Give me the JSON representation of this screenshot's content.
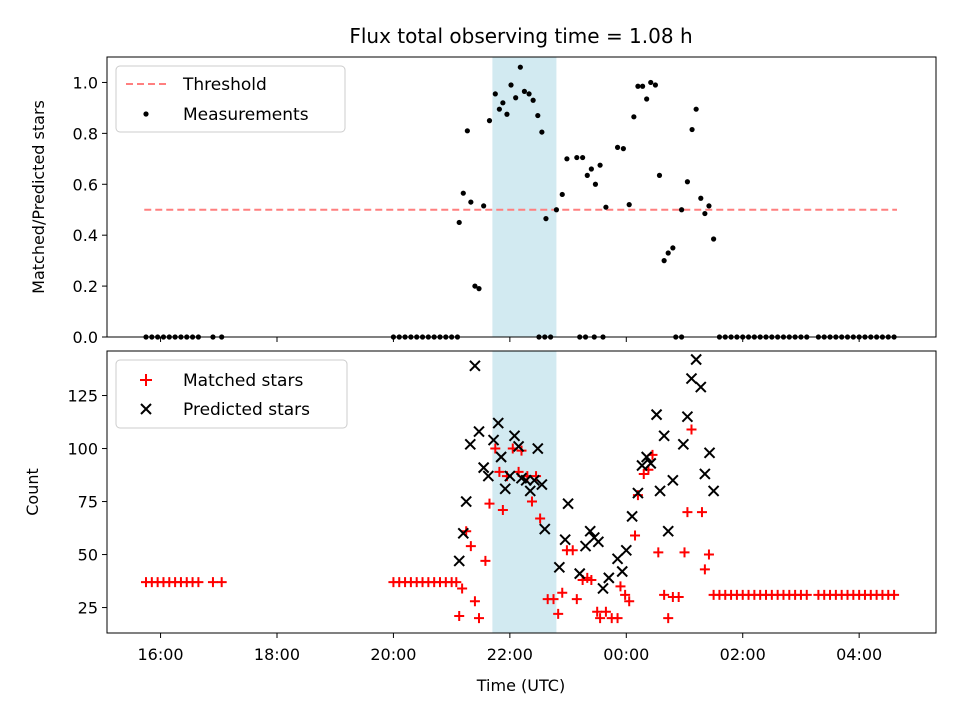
{
  "title": "Flux total observing time = 1.08 h",
  "colors": {
    "threshold": "#ff7f7f",
    "measurement": "#000000",
    "matched": "#ff0000",
    "predicted": "#000000",
    "span": "#add8e6"
  },
  "chart_data": [
    {
      "type": "scatter",
      "ylabel": "Matched/Predicted stars",
      "ylim": [
        0,
        1.1
      ],
      "yticks": [
        0.0,
        0.2,
        0.4,
        0.6,
        0.8,
        1.0
      ],
      "ytick_labels": [
        "0.0",
        "0.2",
        "0.4",
        "0.6",
        "0.8",
        "1.0"
      ],
      "xlim": [
        15.08,
        29.32
      ],
      "highlight_span": [
        21.7,
        22.8
      ],
      "legend": {
        "position": "upper-left",
        "threshold_label": "Threshold",
        "measurements_label": "Measurements"
      },
      "threshold": {
        "x": [
          15.72,
          28.65
        ],
        "y": 0.5
      },
      "measurements": [
        [
          15.75,
          0
        ],
        [
          15.85,
          0
        ],
        [
          15.95,
          0
        ],
        [
          16.05,
          0
        ],
        [
          16.15,
          0
        ],
        [
          16.25,
          0
        ],
        [
          16.35,
          0
        ],
        [
          16.45,
          0
        ],
        [
          16.55,
          0
        ],
        [
          16.65,
          0
        ],
        [
          16.9,
          0
        ],
        [
          17.05,
          0
        ],
        [
          20.0,
          0
        ],
        [
          20.1,
          0
        ],
        [
          20.2,
          0
        ],
        [
          20.3,
          0
        ],
        [
          20.4,
          0
        ],
        [
          20.5,
          0
        ],
        [
          20.6,
          0
        ],
        [
          20.7,
          0
        ],
        [
          20.8,
          0
        ],
        [
          20.9,
          0
        ],
        [
          21.0,
          0
        ],
        [
          21.1,
          0
        ],
        [
          21.13,
          0.45
        ],
        [
          21.2,
          0.565
        ],
        [
          21.27,
          0.81
        ],
        [
          21.33,
          0.53
        ],
        [
          21.4,
          0.2
        ],
        [
          21.47,
          0.19
        ],
        [
          21.55,
          0.515
        ],
        [
          21.65,
          0.85
        ],
        [
          21.75,
          0.955
        ],
        [
          21.82,
          0.895
        ],
        [
          21.88,
          0.92
        ],
        [
          21.95,
          0.875
        ],
        [
          22.02,
          0.99
        ],
        [
          22.1,
          0.94
        ],
        [
          22.18,
          1.06
        ],
        [
          22.25,
          0.965
        ],
        [
          22.33,
          0.955
        ],
        [
          22.4,
          0.93
        ],
        [
          22.48,
          0.87
        ],
        [
          22.55,
          0.805
        ],
        [
          22.62,
          0.465
        ],
        [
          22.8,
          0.5
        ],
        [
          22.9,
          0.56
        ],
        [
          22.98,
          0.7
        ],
        [
          23.15,
          0.705
        ],
        [
          23.25,
          0.705
        ],
        [
          23.33,
          0.635
        ],
        [
          23.4,
          0.66
        ],
        [
          23.47,
          0.6
        ],
        [
          23.55,
          0.675
        ],
        [
          23.65,
          0.51
        ],
        [
          23.85,
          0.745
        ],
        [
          23.95,
          0.74
        ],
        [
          24.05,
          0.52
        ],
        [
          24.13,
          0.865
        ],
        [
          24.2,
          0.985
        ],
        [
          24.28,
          0.985
        ],
        [
          24.35,
          0.935
        ],
        [
          24.42,
          1.0
        ],
        [
          24.5,
          0.99
        ],
        [
          24.57,
          0.635
        ],
        [
          24.65,
          0.3
        ],
        [
          24.72,
          0.33
        ],
        [
          24.8,
          0.35
        ],
        [
          24.95,
          0.5
        ],
        [
          25.05,
          0.61
        ],
        [
          25.13,
          0.815
        ],
        [
          25.2,
          0.895
        ],
        [
          25.28,
          0.545
        ],
        [
          25.35,
          0.485
        ],
        [
          25.42,
          0.515
        ],
        [
          25.5,
          0.385
        ],
        [
          22.5,
          0
        ],
        [
          22.6,
          0
        ],
        [
          22.7,
          0
        ],
        [
          23.2,
          0
        ],
        [
          23.3,
          0
        ],
        [
          23.45,
          0
        ],
        [
          23.6,
          0
        ],
        [
          24.85,
          0
        ],
        [
          24.95,
          0
        ],
        [
          25.6,
          0
        ],
        [
          25.7,
          0
        ],
        [
          25.8,
          0
        ],
        [
          25.9,
          0
        ],
        [
          26.0,
          0
        ],
        [
          26.1,
          0
        ],
        [
          26.2,
          0
        ],
        [
          26.3,
          0
        ],
        [
          26.4,
          0
        ],
        [
          26.5,
          0
        ],
        [
          26.6,
          0
        ],
        [
          26.7,
          0
        ],
        [
          26.8,
          0
        ],
        [
          26.9,
          0
        ],
        [
          27.0,
          0
        ],
        [
          27.1,
          0
        ],
        [
          27.3,
          0
        ],
        [
          27.4,
          0
        ],
        [
          27.5,
          0
        ],
        [
          27.6,
          0
        ],
        [
          27.7,
          0
        ],
        [
          27.8,
          0
        ],
        [
          27.9,
          0
        ],
        [
          28.0,
          0
        ],
        [
          28.1,
          0
        ],
        [
          28.2,
          0
        ],
        [
          28.3,
          0
        ],
        [
          28.4,
          0
        ],
        [
          28.5,
          0
        ],
        [
          28.6,
          0
        ]
      ]
    },
    {
      "type": "scatter",
      "ylabel": "Count",
      "xlabel": "Time (UTC)",
      "ylim": [
        13,
        146
      ],
      "yticks": [
        25,
        50,
        75,
        100,
        125
      ],
      "ytick_labels": [
        "25",
        "50",
        "75",
        "100",
        "125"
      ],
      "xlim": [
        15.08,
        29.32
      ],
      "xticks": [
        16,
        18,
        20,
        22,
        24,
        26,
        28
      ],
      "xtick_labels": [
        "16:00",
        "18:00",
        "20:00",
        "22:00",
        "00:00",
        "02:00",
        "04:00"
      ],
      "highlight_span": [
        21.7,
        22.8
      ],
      "legend": {
        "position": "upper-left",
        "matched_label": "Matched stars",
        "predicted_label": "Predicted stars"
      },
      "matched": [
        [
          15.75,
          37
        ],
        [
          15.85,
          37
        ],
        [
          15.95,
          37
        ],
        [
          16.05,
          37
        ],
        [
          16.15,
          37
        ],
        [
          16.25,
          37
        ],
        [
          16.35,
          37
        ],
        [
          16.45,
          37
        ],
        [
          16.55,
          37
        ],
        [
          16.65,
          37
        ],
        [
          16.9,
          37
        ],
        [
          17.05,
          37
        ],
        [
          20.0,
          37
        ],
        [
          20.1,
          37
        ],
        [
          20.2,
          37
        ],
        [
          20.3,
          37
        ],
        [
          20.4,
          37
        ],
        [
          20.5,
          37
        ],
        [
          20.6,
          37
        ],
        [
          20.7,
          37
        ],
        [
          20.8,
          37
        ],
        [
          20.9,
          37
        ],
        [
          21.0,
          37
        ],
        [
          21.08,
          37
        ],
        [
          21.13,
          21
        ],
        [
          21.18,
          34
        ],
        [
          21.25,
          61
        ],
        [
          21.33,
          54
        ],
        [
          21.4,
          28
        ],
        [
          21.47,
          20
        ],
        [
          21.58,
          47
        ],
        [
          21.65,
          74
        ],
        [
          21.75,
          100
        ],
        [
          21.82,
          89
        ],
        [
          21.88,
          71
        ],
        [
          21.95,
          87
        ],
        [
          22.05,
          100
        ],
        [
          22.15,
          89
        ],
        [
          22.2,
          99
        ],
        [
          22.3,
          87
        ],
        [
          22.38,
          75
        ],
        [
          22.45,
          87
        ],
        [
          22.52,
          67
        ],
        [
          22.65,
          29
        ],
        [
          22.75,
          29
        ],
        [
          22.83,
          22
        ],
        [
          22.9,
          32
        ],
        [
          22.98,
          52
        ],
        [
          23.08,
          52
        ],
        [
          23.15,
          29
        ],
        [
          23.25,
          38
        ],
        [
          23.33,
          39
        ],
        [
          23.4,
          38
        ],
        [
          23.5,
          23
        ],
        [
          23.55,
          20
        ],
        [
          23.65,
          23
        ],
        [
          23.75,
          20
        ],
        [
          23.85,
          20
        ],
        [
          23.9,
          35
        ],
        [
          23.98,
          31
        ],
        [
          24.05,
          28
        ],
        [
          24.15,
          59
        ],
        [
          24.2,
          78
        ],
        [
          24.3,
          88
        ],
        [
          24.38,
          90
        ],
        [
          24.45,
          97
        ],
        [
          24.55,
          51
        ],
        [
          24.65,
          31
        ],
        [
          24.72,
          20
        ],
        [
          24.8,
          30
        ],
        [
          24.9,
          30
        ],
        [
          25.0,
          51
        ],
        [
          25.05,
          70
        ],
        [
          25.12,
          109
        ],
        [
          25.3,
          70
        ],
        [
          25.35,
          43
        ],
        [
          25.42,
          50
        ],
        [
          25.5,
          31
        ],
        [
          25.6,
          31
        ],
        [
          25.7,
          31
        ],
        [
          25.8,
          31
        ],
        [
          25.9,
          31
        ],
        [
          26.0,
          31
        ],
        [
          26.1,
          31
        ],
        [
          26.2,
          31
        ],
        [
          26.3,
          31
        ],
        [
          26.4,
          31
        ],
        [
          26.5,
          31
        ],
        [
          26.6,
          31
        ],
        [
          26.7,
          31
        ],
        [
          26.8,
          31
        ],
        [
          26.9,
          31
        ],
        [
          27.0,
          31
        ],
        [
          27.1,
          31
        ],
        [
          27.3,
          31
        ],
        [
          27.4,
          31
        ],
        [
          27.5,
          31
        ],
        [
          27.6,
          31
        ],
        [
          27.7,
          31
        ],
        [
          27.8,
          31
        ],
        [
          27.9,
          31
        ],
        [
          28.0,
          31
        ],
        [
          28.1,
          31
        ],
        [
          28.2,
          31
        ],
        [
          28.3,
          31
        ],
        [
          28.4,
          31
        ],
        [
          28.5,
          31
        ],
        [
          28.6,
          31
        ]
      ],
      "predicted": [
        [
          21.13,
          47
        ],
        [
          21.2,
          60
        ],
        [
          21.25,
          75
        ],
        [
          21.32,
          102
        ],
        [
          21.4,
          139
        ],
        [
          21.47,
          108
        ],
        [
          21.55,
          91
        ],
        [
          21.63,
          87
        ],
        [
          21.72,
          104
        ],
        [
          21.8,
          112
        ],
        [
          21.85,
          96
        ],
        [
          21.92,
          81
        ],
        [
          22.0,
          87
        ],
        [
          22.08,
          106
        ],
        [
          22.15,
          101
        ],
        [
          22.2,
          86
        ],
        [
          22.28,
          85
        ],
        [
          22.35,
          80
        ],
        [
          22.42,
          85
        ],
        [
          22.48,
          100
        ],
        [
          22.55,
          83
        ],
        [
          22.6,
          62
        ],
        [
          22.85,
          44
        ],
        [
          22.95,
          57
        ],
        [
          23.0,
          74
        ],
        [
          23.2,
          41
        ],
        [
          23.3,
          54
        ],
        [
          23.38,
          61
        ],
        [
          23.45,
          58
        ],
        [
          23.52,
          56
        ],
        [
          23.6,
          34
        ],
        [
          23.7,
          39
        ],
        [
          23.85,
          48
        ],
        [
          23.93,
          42
        ],
        [
          24.0,
          52
        ],
        [
          24.1,
          68
        ],
        [
          24.2,
          79
        ],
        [
          24.27,
          92
        ],
        [
          24.35,
          96
        ],
        [
          24.42,
          93
        ],
        [
          24.52,
          116
        ],
        [
          24.58,
          80
        ],
        [
          24.65,
          106
        ],
        [
          24.72,
          61
        ],
        [
          24.8,
          85
        ],
        [
          24.98,
          102
        ],
        [
          25.05,
          115
        ],
        [
          25.12,
          133
        ],
        [
          25.2,
          142
        ],
        [
          25.28,
          129
        ],
        [
          25.35,
          88
        ],
        [
          25.43,
          98
        ],
        [
          25.5,
          80
        ]
      ]
    }
  ]
}
